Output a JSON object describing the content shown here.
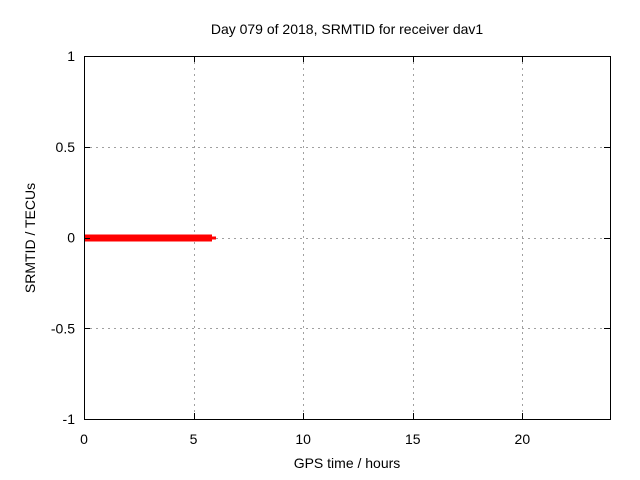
{
  "chart_data": {
    "type": "line",
    "title": "Day 079 of 2018, SRMTID for receiver dav1",
    "xlabel": "GPS time / hours",
    "ylabel": "SRMTID / TECUs",
    "xlim": [
      0,
      24
    ],
    "ylim": [
      -1,
      1
    ],
    "xticks": [
      {
        "value": 0,
        "label": "0"
      },
      {
        "value": 5,
        "label": "5"
      },
      {
        "value": 10,
        "label": "10"
      },
      {
        "value": 15,
        "label": "15"
      },
      {
        "value": 20,
        "label": "20"
      }
    ],
    "yticks": [
      {
        "value": -1,
        "label": "-1"
      },
      {
        "value": -0.5,
        "label": "-0.5"
      },
      {
        "value": 0,
        "label": "0"
      },
      {
        "value": 0.5,
        "label": "0.5"
      },
      {
        "value": 1,
        "label": "1"
      }
    ],
    "grid": true,
    "legend": "none",
    "series": [
      {
        "name": "SRMTID",
        "color": "#ff0000",
        "y_value": 0,
        "x_start": 0,
        "x_end": 6.0,
        "render_segments": [
          {
            "x1": 0,
            "x2": 5.84,
            "y": 0,
            "line_width": 7
          },
          {
            "x1": 5.84,
            "x2": 6.03,
            "y": 0,
            "line_width": 3
          }
        ]
      }
    ],
    "colors": {
      "line": "#ff0000",
      "grid": "#a0a0a0",
      "axis": "#000000",
      "text": "#000000",
      "background": "#ffffff"
    }
  }
}
